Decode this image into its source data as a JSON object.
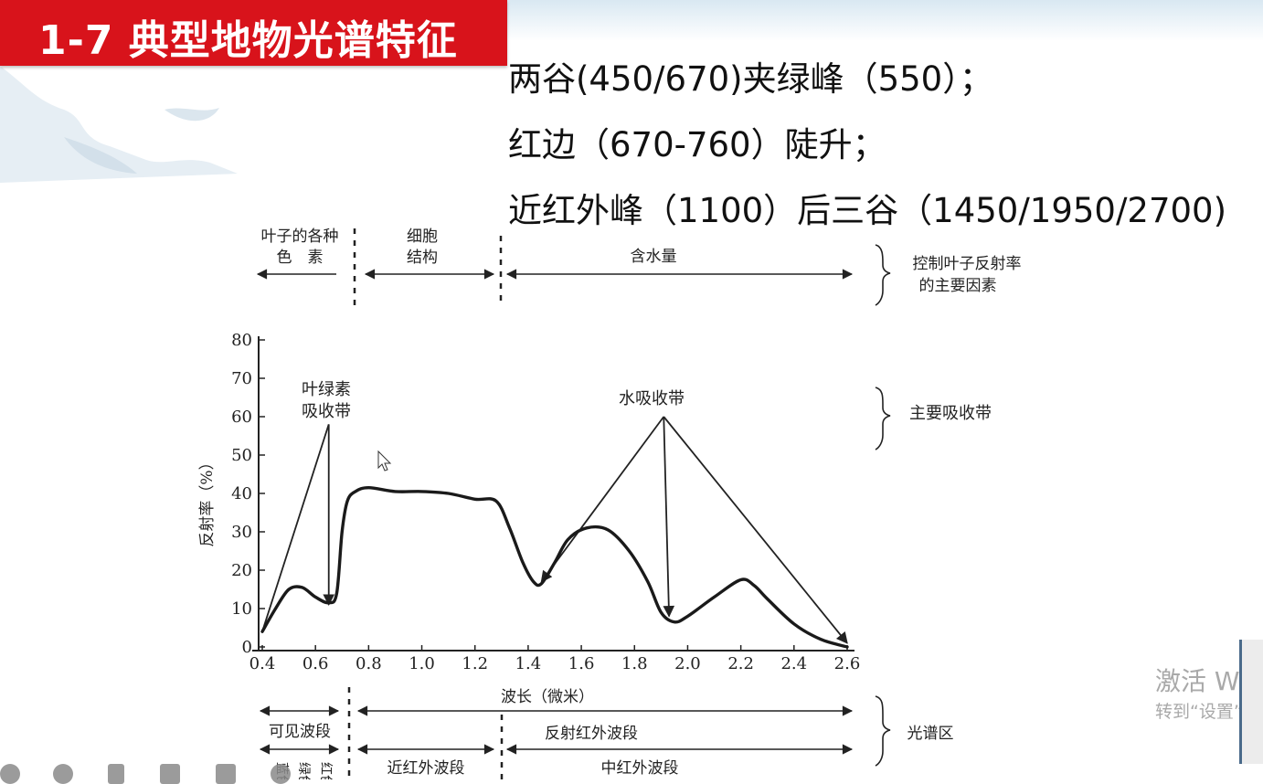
{
  "title": "1-7 典型地物光谱特征",
  "bullets": [
    "两谷(450/670)夹绿峰（550）；",
    "红边（670-760）陡升；",
    "近红外峰（1100）后三谷（1450/1950/2700)"
  ],
  "figure": {
    "factors": {
      "pigments_l1": "叶子的各种",
      "pigments_l2": "色　素",
      "cell_l1": "细胞",
      "cell_l2": "结构",
      "water": "含水量",
      "right_l1": "控制叶子反射率",
      "right_l2": "的主要因素"
    },
    "absorption": {
      "chlorophyll_l1": "叶绿素",
      "chlorophyll_l2": "吸收带",
      "water_band": "水吸收带",
      "right": "主要吸收带"
    },
    "bottom": {
      "wavelength": "波长（微米）",
      "visible": "可见波段",
      "reflective_ir": "反射红外波段",
      "near_ir": "近红外波段",
      "mid_ir": "中红外波段",
      "right": "光谱区",
      "vertical_colors": [
        "蓝色",
        "绿色",
        "红色"
      ]
    }
  },
  "chart_data": {
    "type": "line",
    "ylabel": "反射率（%）",
    "xlabel": "波长（微米）",
    "xlim": [
      0.4,
      2.6
    ],
    "ylim": [
      0,
      80
    ],
    "xticks": [
      "0.4",
      "0.6",
      "0.8",
      "1.0",
      "1.2",
      "1.4",
      "1.6",
      "1.8",
      "2.0",
      "2.2",
      "2.4",
      "2.6"
    ],
    "yticks": [
      "0",
      "10",
      "20",
      "30",
      "40",
      "50",
      "60",
      "70",
      "80"
    ],
    "series": [
      {
        "x": [
          0.4,
          0.45,
          0.5,
          0.55,
          0.6,
          0.65,
          0.68,
          0.7,
          0.72,
          0.75,
          0.8,
          0.9,
          1.0,
          1.1,
          1.2,
          1.28,
          1.33,
          1.38,
          1.42,
          1.45,
          1.5,
          1.55,
          1.62,
          1.7,
          1.78,
          1.85,
          1.9,
          1.95,
          2.0,
          2.1,
          2.2,
          2.25,
          2.3,
          2.4,
          2.5,
          2.6
        ],
        "y": [
          4,
          10,
          15,
          15.5,
          13,
          11.5,
          14,
          30,
          38,
          40.5,
          41.5,
          40.5,
          40.5,
          40,
          38.5,
          38,
          31,
          22,
          17,
          16.5,
          22,
          28,
          31,
          30.5,
          25,
          17,
          9,
          6.5,
          8,
          13,
          17.5,
          16,
          12.5,
          6,
          2,
          0
        ]
      }
    ],
    "annotations": [
      {
        "text": "叶绿素吸收带",
        "from": [
          0.4,
          4
        ],
        "peak": [
          0.65,
          58
        ],
        "to": [
          0.65,
          11
        ]
      },
      {
        "text": "水吸收带",
        "peak": [
          1.91,
          60
        ],
        "targets": [
          [
            1.45,
            17
          ],
          [
            1.93,
            8
          ],
          [
            2.6,
            1
          ]
        ]
      }
    ]
  },
  "watermark": {
    "line1": "激活 Wi",
    "line2": "转到“设置”以"
  }
}
